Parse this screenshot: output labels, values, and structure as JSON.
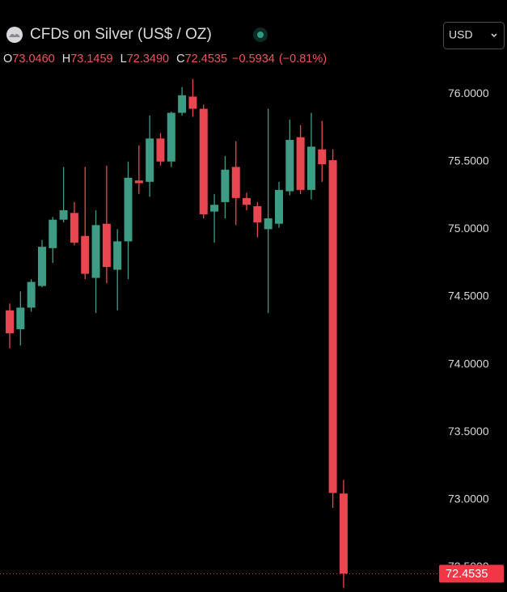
{
  "header": {
    "title": "CFDs on Silver (US$ / OZ)",
    "currency": "USD",
    "ohlc": [
      {
        "key": "O",
        "value": "73.0460"
      },
      {
        "key": "H",
        "value": "73.1459"
      },
      {
        "key": "L",
        "value": "72.3490"
      },
      {
        "key": "C",
        "value": "72.4535"
      }
    ],
    "change": "−0.5934",
    "change_pct": "(−0.81%)"
  },
  "chart_data": {
    "type": "candlestick",
    "up_color": "#3e9c84",
    "down_color": "#e8474f",
    "open": [
      74.4,
      74.26,
      74.42,
      74.58,
      74.86,
      75.07,
      75.12,
      74.95,
      74.64,
      75.04,
      74.7,
      74.91,
      75.36,
      75.35,
      75.67,
      75.5,
      75.86,
      75.98,
      75.89,
      75.13,
      75.2,
      75.46,
      75.23,
      75.17,
      75.0,
      75.04,
      75.28,
      75.68,
      75.29,
      75.59,
      75.51,
      73.046
    ],
    "high": [
      74.45,
      74.54,
      74.63,
      74.92,
      75.09,
      75.46,
      75.2,
      75.46,
      75.14,
      75.47,
      75.0,
      75.5,
      75.62,
      75.84,
      75.71,
      75.87,
      76.05,
      76.11,
      75.92,
      75.26,
      75.54,
      75.65,
      75.27,
      75.2,
      75.89,
      75.35,
      75.81,
      75.77,
      75.86,
      75.8,
      75.59,
      73.1459
    ],
    "low": [
      74.12,
      74.14,
      74.39,
      74.57,
      74.75,
      75.05,
      74.88,
      74.63,
      74.38,
      74.6,
      74.4,
      74.63,
      75.26,
      75.24,
      75.47,
      75.46,
      75.84,
      75.83,
      75.08,
      74.9,
      75.08,
      75.03,
      75.14,
      74.94,
      74.38,
      75.01,
      75.25,
      75.26,
      75.22,
      75.35,
      72.94,
      72.349
    ],
    "close": [
      74.23,
      74.42,
      74.61,
      74.87,
      75.07,
      75.14,
      74.9,
      74.67,
      75.03,
      74.72,
      74.91,
      75.38,
      75.34,
      75.67,
      75.5,
      75.86,
      75.99,
      75.89,
      75.11,
      75.18,
      75.44,
      75.23,
      75.18,
      75.05,
      75.08,
      75.29,
      75.66,
      75.29,
      75.61,
      75.48,
      73.05,
      72.4535
    ],
    "last_price_label": "72.4535",
    "ylim": [
      72.3,
      76.15
    ],
    "yticks": [
      {
        "value": 72.5,
        "label": "72.5000"
      },
      {
        "value": 73,
        "label": "73.0000"
      },
      {
        "value": 73.5,
        "label": "73.5000"
      },
      {
        "value": 74,
        "label": "74.0000"
      },
      {
        "value": 74.5,
        "label": "74.5000"
      },
      {
        "value": 75,
        "label": "75.0000"
      },
      {
        "value": 75.5,
        "label": "75.5000"
      },
      {
        "value": 76,
        "label": "76.0000"
      }
    ]
  }
}
